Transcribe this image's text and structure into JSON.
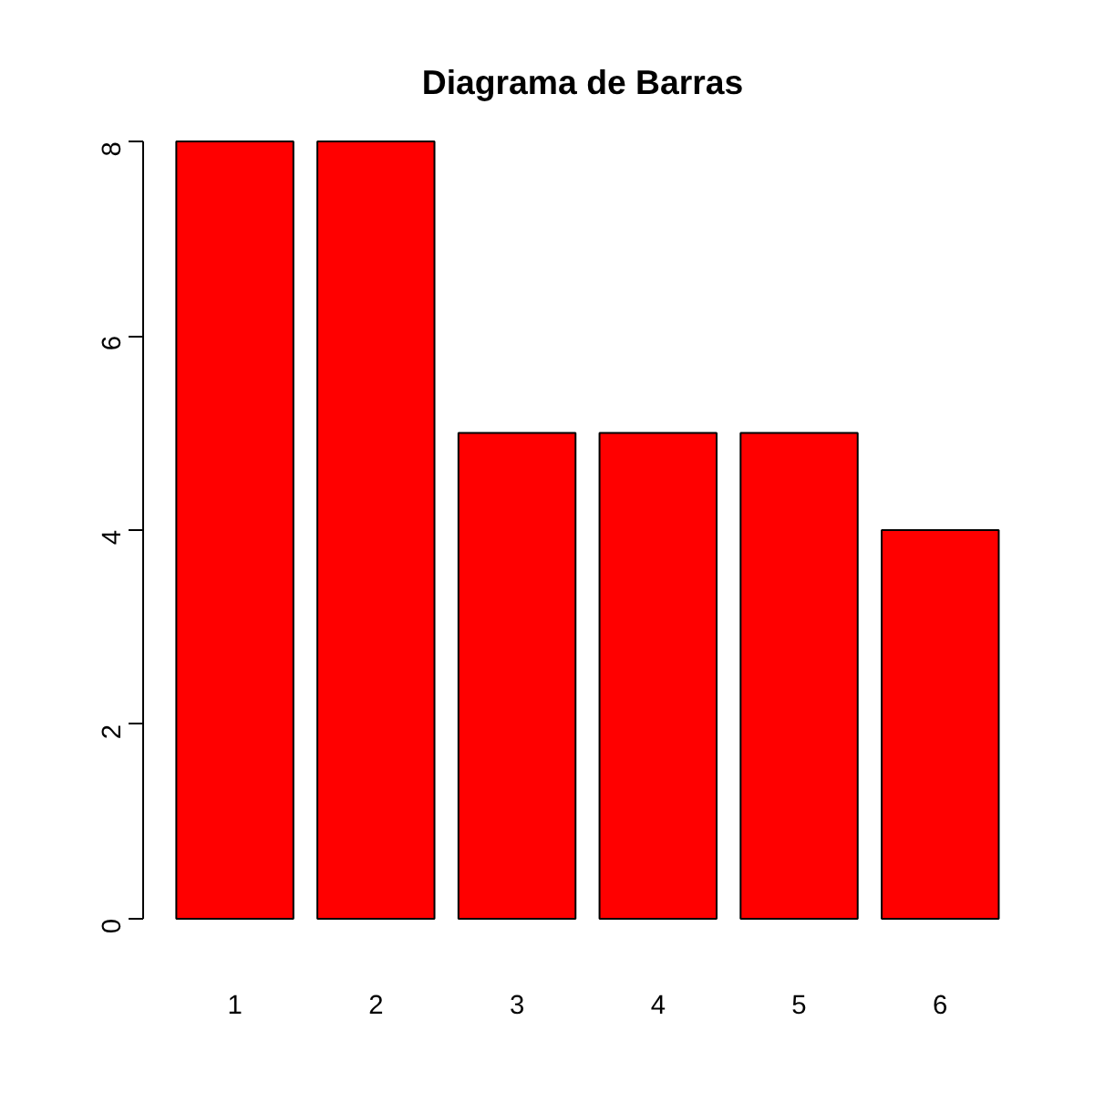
{
  "chart_data": {
    "type": "bar",
    "title": "Diagrama de Barras",
    "categories": [
      "1",
      "2",
      "3",
      "4",
      "5",
      "6"
    ],
    "values": [
      8,
      8,
      5,
      5,
      5,
      4
    ],
    "color": "#ff0000",
    "ylim": [
      0,
      8
    ],
    "yticks": [
      0,
      2,
      4,
      6,
      8
    ],
    "grid": false
  }
}
